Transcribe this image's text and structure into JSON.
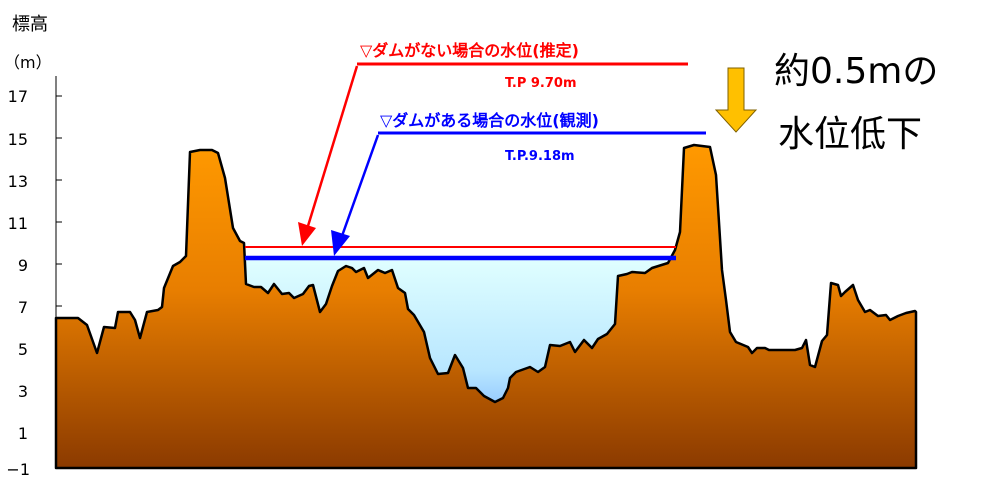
{
  "y_axis": {
    "title": "標高",
    "unit": "（m）",
    "ticks": [
      "17",
      "15",
      "13",
      "11",
      "9",
      "7",
      "5",
      "3",
      "1",
      "−1"
    ]
  },
  "without_dam": {
    "label": "▽ダムがない場合の水位(推定)",
    "value_text": "T.P 9.70m",
    "level": 9.7,
    "color": "#ff0000"
  },
  "with_dam": {
    "label": "▽ダムがある場合の水位(観測)",
    "value_text": "T.P.9.18m",
    "level": 9.18,
    "color": "#0000ff"
  },
  "drop_note": {
    "line1": "約0.5mの",
    "line2": "水位低下",
    "arrow_color": "#ffc000"
  },
  "colors": {
    "terrain_top": "#ff9900",
    "terrain_bottom": "#8b3a00",
    "water_top": "#e0ffff",
    "water_bottom": "#5b9bff"
  }
}
